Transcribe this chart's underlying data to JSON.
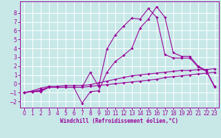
{
  "xlabel": "Windchill (Refroidissement éolien,°C)",
  "background_color": "#c8e8e8",
  "grid_color": "#ffffff",
  "line_color": "#990099",
  "xlim": [
    -0.5,
    23.5
  ],
  "ylim": [
    -2.7,
    9.3
  ],
  "xticks": [
    0,
    1,
    2,
    3,
    4,
    5,
    6,
    7,
    8,
    9,
    10,
    11,
    12,
    13,
    14,
    15,
    16,
    17,
    18,
    19,
    20,
    21,
    22,
    23
  ],
  "yticks": [
    -2,
    -1,
    0,
    1,
    2,
    3,
    4,
    5,
    6,
    7,
    8
  ],
  "s1_x": [
    0,
    1,
    2,
    3,
    4,
    5,
    6,
    7,
    8,
    9,
    10,
    11,
    12,
    13,
    14,
    15,
    16,
    17,
    18,
    19,
    20,
    21,
    22,
    23
  ],
  "s1_y": [
    -1.0,
    -0.8,
    -0.5,
    -0.3,
    -0.3,
    -0.2,
    -0.2,
    -0.2,
    -0.1,
    0.1,
    0.3,
    0.5,
    0.7,
    0.9,
    1.0,
    1.1,
    1.2,
    1.3,
    1.4,
    1.5,
    1.5,
    1.6,
    1.6,
    1.7
  ],
  "s2_x": [
    0,
    1,
    2,
    3,
    4,
    5,
    6,
    7,
    8,
    9,
    10,
    11,
    12,
    13,
    14,
    15,
    16,
    17,
    18,
    19,
    20,
    21,
    22,
    23
  ],
  "s2_y": [
    -1.0,
    -0.9,
    -0.9,
    -0.4,
    -0.4,
    -0.4,
    -0.4,
    -0.4,
    -0.3,
    -0.2,
    -0.1,
    0.0,
    0.1,
    0.2,
    0.3,
    0.4,
    0.5,
    0.7,
    0.8,
    0.9,
    1.0,
    1.1,
    1.2,
    1.3
  ],
  "s3_x": [
    0,
    1,
    2,
    3,
    4,
    5,
    6,
    7,
    8,
    9,
    10,
    11,
    12,
    13,
    14,
    15,
    16,
    17,
    18,
    19,
    20,
    21,
    22,
    23
  ],
  "s3_y": [
    -1.0,
    -0.9,
    -0.8,
    -0.4,
    -0.4,
    -0.4,
    -0.4,
    -2.2,
    -0.9,
    -0.8,
    1.3,
    2.5,
    3.2,
    4.0,
    6.3,
    7.3,
    8.7,
    7.5,
    3.5,
    3.1,
    3.1,
    2.0,
    1.5,
    -0.3
  ],
  "s4_x": [
    0,
    1,
    2,
    3,
    4,
    5,
    6,
    7,
    8,
    9,
    10,
    11,
    12,
    13,
    14,
    15,
    16,
    17,
    18,
    19,
    20,
    21,
    22,
    23
  ],
  "s4_y": [
    -1.0,
    -0.9,
    -0.7,
    -0.4,
    -0.4,
    -0.4,
    -0.4,
    -0.4,
    1.3,
    -0.3,
    3.9,
    5.5,
    6.5,
    7.4,
    7.3,
    8.5,
    7.5,
    3.3,
    2.9,
    2.9,
    2.9,
    1.9,
    1.4,
    -0.4
  ],
  "tick_fontsize": 5.5,
  "xlabel_fontsize": 5.5
}
